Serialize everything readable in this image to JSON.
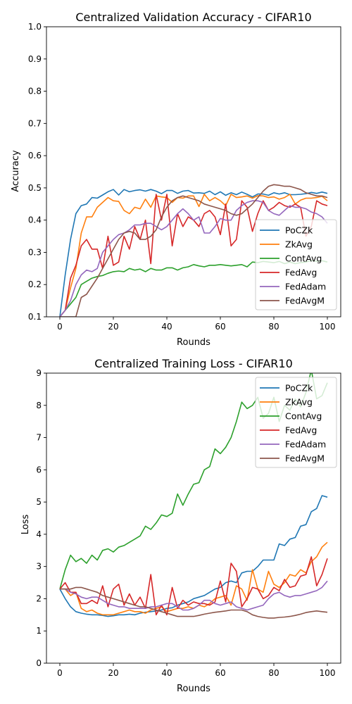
{
  "chart_data": [
    {
      "type": "line",
      "title": "Centralized Validation Accuracy - CIFAR10",
      "xlabel": "Rounds",
      "ylabel": "Accuracy",
      "xlim": [
        -5,
        105
      ],
      "ylim": [
        0.1,
        1.0
      ],
      "xticks": [
        "0",
        "20",
        "40",
        "60",
        "80",
        "100"
      ],
      "yticks": [
        "0.1",
        "0.2",
        "0.3",
        "0.4",
        "0.5",
        "0.6",
        "0.7",
        "0.8",
        "0.9",
        "1.0"
      ],
      "legend_position": "lower-right",
      "x": [
        0,
        2,
        4,
        6,
        8,
        10,
        12,
        14,
        16,
        18,
        20,
        22,
        24,
        26,
        28,
        30,
        32,
        34,
        36,
        38,
        40,
        42,
        44,
        46,
        48,
        50,
        52,
        54,
        56,
        58,
        60,
        62,
        64,
        66,
        68,
        70,
        72,
        74,
        76,
        78,
        80,
        82,
        84,
        86,
        88,
        90,
        92,
        94,
        96,
        98,
        100
      ],
      "series": [
        {
          "name": "PoCZk",
          "color": "#1f77b4",
          "values": [
            0.1,
            0.23,
            0.34,
            0.42,
            0.445,
            0.45,
            0.47,
            0.468,
            0.478,
            0.488,
            0.495,
            0.478,
            0.495,
            0.488,
            0.492,
            0.494,
            0.49,
            0.495,
            0.49,
            0.482,
            0.492,
            0.492,
            0.483,
            0.49,
            0.492,
            0.484,
            0.485,
            0.483,
            0.49,
            0.479,
            0.488,
            0.477,
            0.485,
            0.479,
            0.487,
            0.48,
            0.472,
            0.481,
            0.481,
            0.477,
            0.485,
            0.481,
            0.485,
            0.479,
            0.479,
            0.48,
            0.482,
            0.486,
            0.483,
            0.487,
            0.483
          ]
        },
        {
          "name": "ZkAvg",
          "color": "#ff7f0e",
          "values": [
            0.1,
            0.12,
            0.19,
            0.25,
            0.36,
            0.41,
            0.41,
            0.44,
            0.455,
            0.47,
            0.46,
            0.458,
            0.43,
            0.42,
            0.44,
            0.435,
            0.465,
            0.44,
            0.475,
            0.472,
            0.47,
            0.455,
            0.47,
            0.468,
            0.475,
            0.475,
            0.442,
            0.48,
            0.46,
            0.47,
            0.46,
            0.445,
            0.48,
            0.47,
            0.472,
            0.475,
            0.468,
            0.476,
            0.475,
            0.47,
            0.472,
            0.465,
            0.47,
            0.48,
            0.45,
            0.462,
            0.468,
            0.468,
            0.47,
            0.474,
            0.46
          ]
        },
        {
          "name": "ContAvg",
          "color": "#2ca02c",
          "values": [
            0.1,
            0.12,
            0.14,
            0.16,
            0.2,
            0.21,
            0.22,
            0.225,
            0.228,
            0.235,
            0.24,
            0.242,
            0.24,
            0.25,
            0.245,
            0.248,
            0.24,
            0.25,
            0.245,
            0.245,
            0.252,
            0.252,
            0.245,
            0.252,
            0.255,
            0.262,
            0.258,
            0.255,
            0.26,
            0.26,
            0.262,
            0.26,
            0.258,
            0.26,
            0.262,
            0.255,
            0.27,
            0.268,
            0.272,
            0.27,
            0.268,
            0.272,
            0.265,
            0.27,
            0.265,
            0.268,
            0.27,
            0.275,
            0.272,
            0.274,
            0.27
          ]
        },
        {
          "name": "FedAvg",
          "color": "#d62728",
          "values": [
            0.1,
            0.12,
            0.22,
            0.26,
            0.32,
            0.34,
            0.31,
            0.31,
            0.25,
            0.35,
            0.26,
            0.27,
            0.35,
            0.31,
            0.38,
            0.34,
            0.4,
            0.265,
            0.48,
            0.4,
            0.48,
            0.32,
            0.42,
            0.38,
            0.41,
            0.4,
            0.38,
            0.42,
            0.43,
            0.41,
            0.355,
            0.45,
            0.32,
            0.34,
            0.46,
            0.44,
            0.365,
            0.42,
            0.46,
            0.43,
            0.44,
            0.455,
            0.445,
            0.44,
            0.45,
            0.44,
            0.35,
            0.38,
            0.46,
            0.45,
            0.445
          ]
        },
        {
          "name": "FedAdam",
          "color": "#9467bd",
          "values": [
            0.1,
            0.12,
            0.15,
            0.2,
            0.23,
            0.245,
            0.24,
            0.25,
            0.3,
            0.32,
            0.34,
            0.355,
            0.36,
            0.37,
            0.385,
            0.385,
            0.39,
            0.39,
            0.38,
            0.37,
            0.38,
            0.4,
            0.42,
            0.435,
            0.42,
            0.4,
            0.41,
            0.36,
            0.36,
            0.38,
            0.405,
            0.4,
            0.4,
            0.43,
            0.445,
            0.455,
            0.46,
            0.46,
            0.455,
            0.43,
            0.42,
            0.415,
            0.43,
            0.445,
            0.44,
            0.44,
            0.435,
            0.425,
            0.42,
            0.41,
            0.39
          ]
        },
        {
          "name": "FedAvgM",
          "color": "#8c564b",
          "values": [
            0.1,
            0.1,
            0.1,
            0.1,
            0.16,
            0.17,
            0.195,
            0.22,
            0.25,
            0.28,
            0.31,
            0.34,
            0.36,
            0.365,
            0.36,
            0.34,
            0.34,
            0.35,
            0.37,
            0.41,
            0.44,
            0.46,
            0.47,
            0.475,
            0.47,
            0.465,
            0.46,
            0.45,
            0.445,
            0.44,
            0.435,
            0.43,
            0.42,
            0.415,
            0.42,
            0.435,
            0.45,
            0.47,
            0.49,
            0.505,
            0.51,
            0.508,
            0.505,
            0.505,
            0.5,
            0.495,
            0.485,
            0.48,
            0.475,
            0.475,
            0.47
          ]
        }
      ]
    },
    {
      "type": "line",
      "title": "Centralized Training Loss - CIFAR10",
      "xlabel": "Rounds",
      "ylabel": "Loss",
      "xlim": [
        -5,
        105
      ],
      "ylim": [
        0,
        9
      ],
      "xticks": [
        "0",
        "20",
        "40",
        "60",
        "80",
        "100"
      ],
      "yticks": [
        "0",
        "1",
        "2",
        "3",
        "4",
        "5",
        "6",
        "7",
        "8",
        "9"
      ],
      "legend_position": "top-right",
      "x": [
        0,
        2,
        4,
        6,
        8,
        10,
        12,
        14,
        16,
        18,
        20,
        22,
        24,
        26,
        28,
        30,
        32,
        34,
        36,
        38,
        40,
        42,
        44,
        46,
        48,
        50,
        52,
        54,
        56,
        58,
        60,
        62,
        64,
        66,
        68,
        70,
        72,
        74,
        76,
        78,
        80,
        82,
        84,
        86,
        88,
        90,
        92,
        94,
        96,
        98,
        100
      ],
      "series": [
        {
          "name": "PoCZk",
          "color": "#1f77b4",
          "values": [
            2.3,
            2.0,
            1.75,
            1.6,
            1.55,
            1.52,
            1.5,
            1.5,
            1.48,
            1.45,
            1.47,
            1.5,
            1.5,
            1.52,
            1.5,
            1.55,
            1.58,
            1.6,
            1.62,
            1.65,
            1.7,
            1.72,
            1.8,
            1.85,
            1.9,
            2.0,
            2.05,
            2.1,
            2.2,
            2.3,
            2.35,
            2.5,
            2.55,
            2.5,
            2.8,
            2.85,
            2.85,
            3.0,
            3.2,
            3.2,
            3.2,
            3.7,
            3.65,
            3.85,
            3.9,
            4.25,
            4.3,
            4.7,
            4.8,
            5.2,
            5.15
          ]
        },
        {
          "name": "ZkAvg",
          "color": "#ff7f0e",
          "values": [
            2.3,
            2.3,
            2.1,
            2.2,
            1.7,
            1.6,
            1.65,
            1.55,
            1.5,
            1.5,
            1.5,
            1.55,
            1.6,
            1.65,
            1.6,
            1.6,
            1.55,
            1.65,
            1.7,
            1.75,
            1.6,
            1.65,
            1.7,
            1.7,
            1.75,
            1.7,
            1.8,
            1.75,
            1.85,
            2.0,
            2.05,
            2.1,
            1.8,
            2.4,
            2.3,
            1.95,
            2.9,
            2.3,
            2.2,
            2.85,
            2.45,
            2.35,
            2.5,
            2.75,
            2.7,
            2.9,
            2.8,
            3.15,
            3.3,
            3.6,
            3.75
          ]
        },
        {
          "name": "ContAvg",
          "color": "#2ca02c",
          "values": [
            2.3,
            2.9,
            3.35,
            3.15,
            3.25,
            3.1,
            3.35,
            3.2,
            3.5,
            3.55,
            3.45,
            3.6,
            3.65,
            3.75,
            3.85,
            3.95,
            4.25,
            4.15,
            4.35,
            4.6,
            4.55,
            4.65,
            5.25,
            4.9,
            5.25,
            5.55,
            5.6,
            6.0,
            6.1,
            6.65,
            6.5,
            6.7,
            7.0,
            7.5,
            8.1,
            7.9,
            8.0,
            8.25,
            7.6,
            7.75,
            8.25,
            7.5,
            8.0,
            7.85,
            8.2,
            7.95,
            8.4,
            9.1,
            8.2,
            8.3,
            8.7
          ]
        },
        {
          "name": "FedAvg",
          "color": "#d62728",
          "values": [
            2.3,
            2.5,
            2.2,
            2.2,
            1.85,
            1.85,
            1.95,
            1.85,
            2.4,
            1.75,
            2.3,
            2.45,
            1.8,
            2.15,
            1.8,
            2.05,
            1.7,
            2.75,
            1.5,
            1.8,
            1.5,
            2.35,
            1.7,
            1.95,
            1.8,
            1.9,
            1.85,
            1.85,
            1.8,
            1.9,
            2.55,
            1.9,
            3.1,
            2.85,
            1.75,
            2.0,
            2.35,
            2.3,
            2.0,
            2.1,
            2.35,
            2.25,
            2.6,
            2.35,
            2.4,
            2.7,
            2.75,
            3.3,
            2.4,
            2.75,
            3.25
          ]
        },
        {
          "name": "FedAdam",
          "color": "#9467bd",
          "values": [
            2.3,
            2.3,
            2.2,
            2.15,
            2.05,
            2.0,
            2.05,
            2.05,
            1.95,
            1.85,
            1.8,
            1.75,
            1.75,
            1.7,
            1.7,
            1.7,
            1.7,
            1.75,
            1.75,
            1.8,
            1.85,
            1.85,
            1.75,
            1.65,
            1.65,
            1.7,
            1.8,
            1.95,
            1.95,
            1.85,
            1.8,
            1.85,
            1.9,
            1.75,
            1.7,
            1.65,
            1.7,
            1.75,
            1.8,
            2.0,
            2.15,
            2.2,
            2.1,
            2.05,
            2.1,
            2.1,
            2.15,
            2.2,
            2.25,
            2.35,
            2.55
          ]
        },
        {
          "name": "FedAvgM",
          "color": "#8c564b",
          "values": [
            2.3,
            2.3,
            2.3,
            2.35,
            2.35,
            2.3,
            2.25,
            2.2,
            2.1,
            2.05,
            2.0,
            1.95,
            1.9,
            1.85,
            1.8,
            1.75,
            1.75,
            1.7,
            1.65,
            1.6,
            1.55,
            1.5,
            1.45,
            1.45,
            1.45,
            1.45,
            1.48,
            1.52,
            1.55,
            1.58,
            1.6,
            1.62,
            1.65,
            1.65,
            1.65,
            1.6,
            1.5,
            1.45,
            1.42,
            1.4,
            1.4,
            1.42,
            1.43,
            1.45,
            1.48,
            1.52,
            1.57,
            1.6,
            1.62,
            1.6,
            1.58
          ]
        }
      ]
    }
  ]
}
